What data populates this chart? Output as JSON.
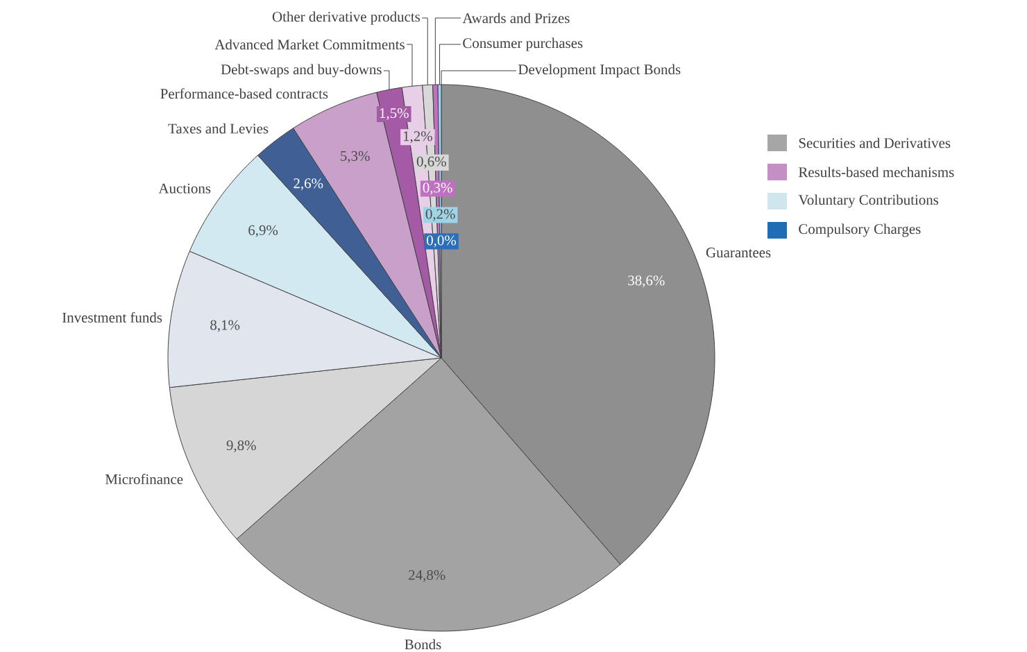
{
  "chart_data": {
    "type": "pie",
    "categories": [
      "Guarantees",
      "Bonds",
      "Microfinance",
      "Investment funds",
      "Auctions",
      "Taxes and Levies",
      "Performance-based contracts",
      "Debt-swaps and buy-downs",
      "Advanced Market Commitments",
      "Other derivative products",
      "Awards and Prizes",
      "Consumer purchases",
      "Development Impact Bonds"
    ],
    "values": [
      38.6,
      24.8,
      9.8,
      8.1,
      6.9,
      2.6,
      5.3,
      1.5,
      1.2,
      0.6,
      0.3,
      0.2,
      0.0
    ],
    "colors": [
      "#8f8f8f",
      "#a3a3a3",
      "#d6d6d6",
      "#e1e5ee",
      "#d3e9f1",
      "#3f5f95",
      "#c9a0c9",
      "#a55aa5",
      "#e8cfe8",
      "#d8d8d8",
      "#c070c0",
      "#9fd3e6",
      "#2a6fb8"
    ],
    "value_labels": [
      "38,6%",
      "24,8%",
      "9,8%",
      "8,1%",
      "6,9%",
      "2,6%",
      "5,3%",
      "1,5%",
      "1,2%",
      "0,6%",
      "0,3%",
      "0,2%",
      "0,0%"
    ],
    "annotations": [
      "Securities and Derivatives",
      "Results-based mechanisms",
      "Voluntary Contributions",
      "Compulsory Charges"
    ]
  }
}
